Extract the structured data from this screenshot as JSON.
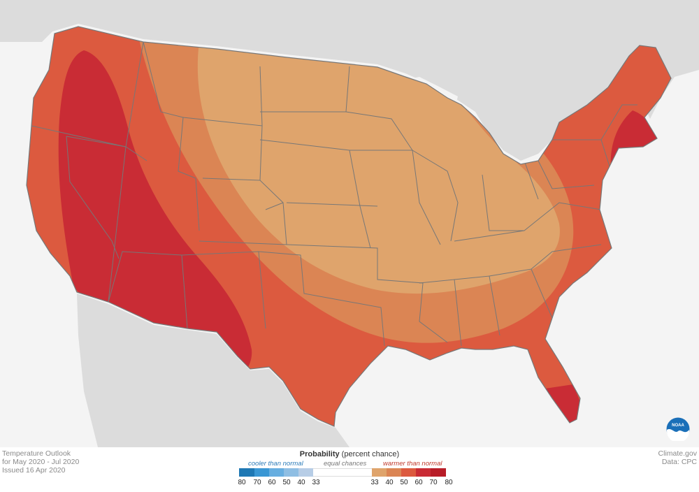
{
  "title": {
    "line1": "Temperature Outlook",
    "line2": "for May 2020 - Jul 2020",
    "line3": "Issued 16 Apr 2020"
  },
  "credit": {
    "line1": "Climate.gov",
    "line2": "Data: CPC"
  },
  "legend": {
    "title_bold": "Probability",
    "title_rest": " (percent chance)",
    "cooler_label": "cooler than normal",
    "equal_label": "equal chances",
    "warmer_label": "warmer than normal",
    "ticks": [
      "80",
      "70",
      "60",
      "50",
      "40",
      "33",
      "33",
      "40",
      "50",
      "60",
      "70",
      "80"
    ],
    "colors": {
      "cool_80": "#1f78b4",
      "cool_70": "#3a97d4",
      "cool_60": "#67aee0",
      "cool_50": "#8fbee3",
      "cool_40": "#b7cde6",
      "equal": "#ffffff",
      "warm_40": "#dfa46c",
      "warm_50": "#db8554",
      "warm_60": "#dc5a3f",
      "warm_70": "#c92c35",
      "warm_80": "#b81d28"
    }
  },
  "map": {
    "land_color": "#dcdcdc",
    "water_color": "#f4f4f4",
    "border_color": "#777777",
    "logo_icon": "noaa-logo-icon"
  }
}
